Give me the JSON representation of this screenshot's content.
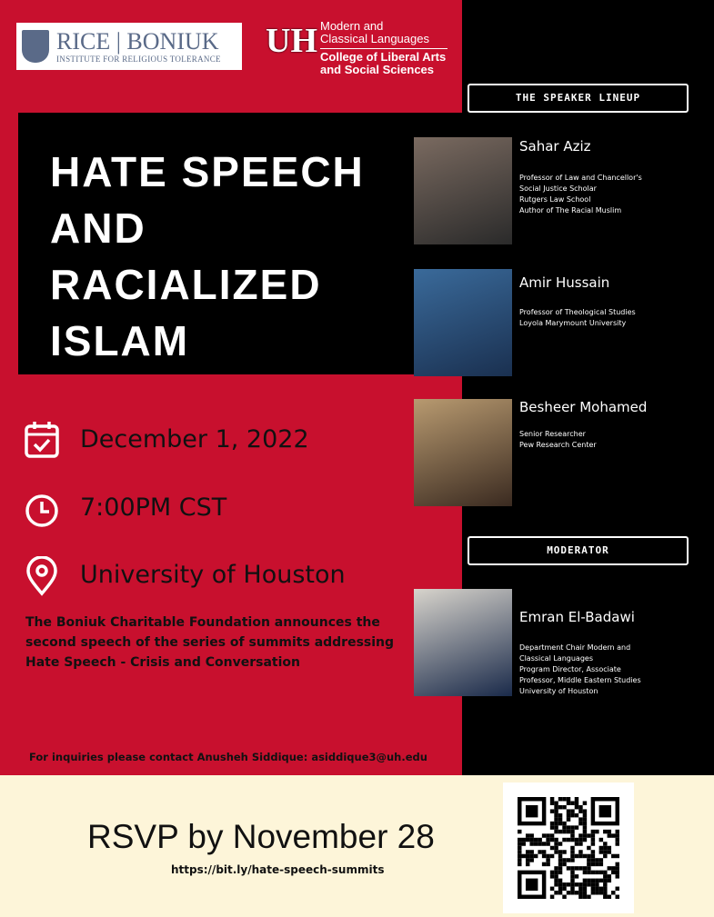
{
  "logos": {
    "rice": {
      "main": "RICE | BONIUK",
      "sub": "INSTITUTE FOR RELIGIOUS TOLERANCE"
    },
    "uh": {
      "mark": "UH",
      "dept_line1": "Modern and",
      "dept_line2": "Classical Languages",
      "college_line1": "College of Liberal Arts",
      "college_line2": "and Social Sciences"
    }
  },
  "title": [
    "HATE SPEECH",
    "AND",
    "RACIALIZED",
    "ISLAM"
  ],
  "event": {
    "date": "December 1, 2022",
    "time": "7:00PM CST",
    "location": "University of Houston"
  },
  "blurb": "The Boniuk Charitable Foundation announces the second speech of the series of summits addressing Hate Speech - Crisis and Conversation",
  "inquiries": "For inquiries please contact Anusheh Siddique: asiddique3@uh.edu",
  "speaker_header": "THE SPEAKER LINEUP",
  "speakers": [
    {
      "name": "Sahar Aziz",
      "desc": [
        "Professor of Law and Chancellor's",
        "Social Justice Scholar",
        "Rutgers Law School",
        "Author of The Racial Muslim"
      ]
    },
    {
      "name": "Amir Hussain",
      "desc": [
        "Professor of Theological Studies",
        "Loyola Marymount University"
      ]
    },
    {
      "name": "Besheer Mohamed",
      "desc": [
        "Senior Researcher",
        "Pew Research Center"
      ]
    }
  ],
  "moderator_header": "MODERATOR",
  "moderator": {
    "name": "Emran El-Badawi",
    "desc": [
      "Department Chair Modern and",
      "Classical Languages",
      "Program Director, Associate",
      "Professor, Middle Eastern Studies",
      "University of Houston"
    ]
  },
  "rsvp": {
    "text": "RSVP by November 28",
    "url": "https://bit.ly/hate-speech-summits"
  },
  "colors": {
    "red": "#c8102e",
    "black": "#000000",
    "cream": "#fdf5d9"
  }
}
